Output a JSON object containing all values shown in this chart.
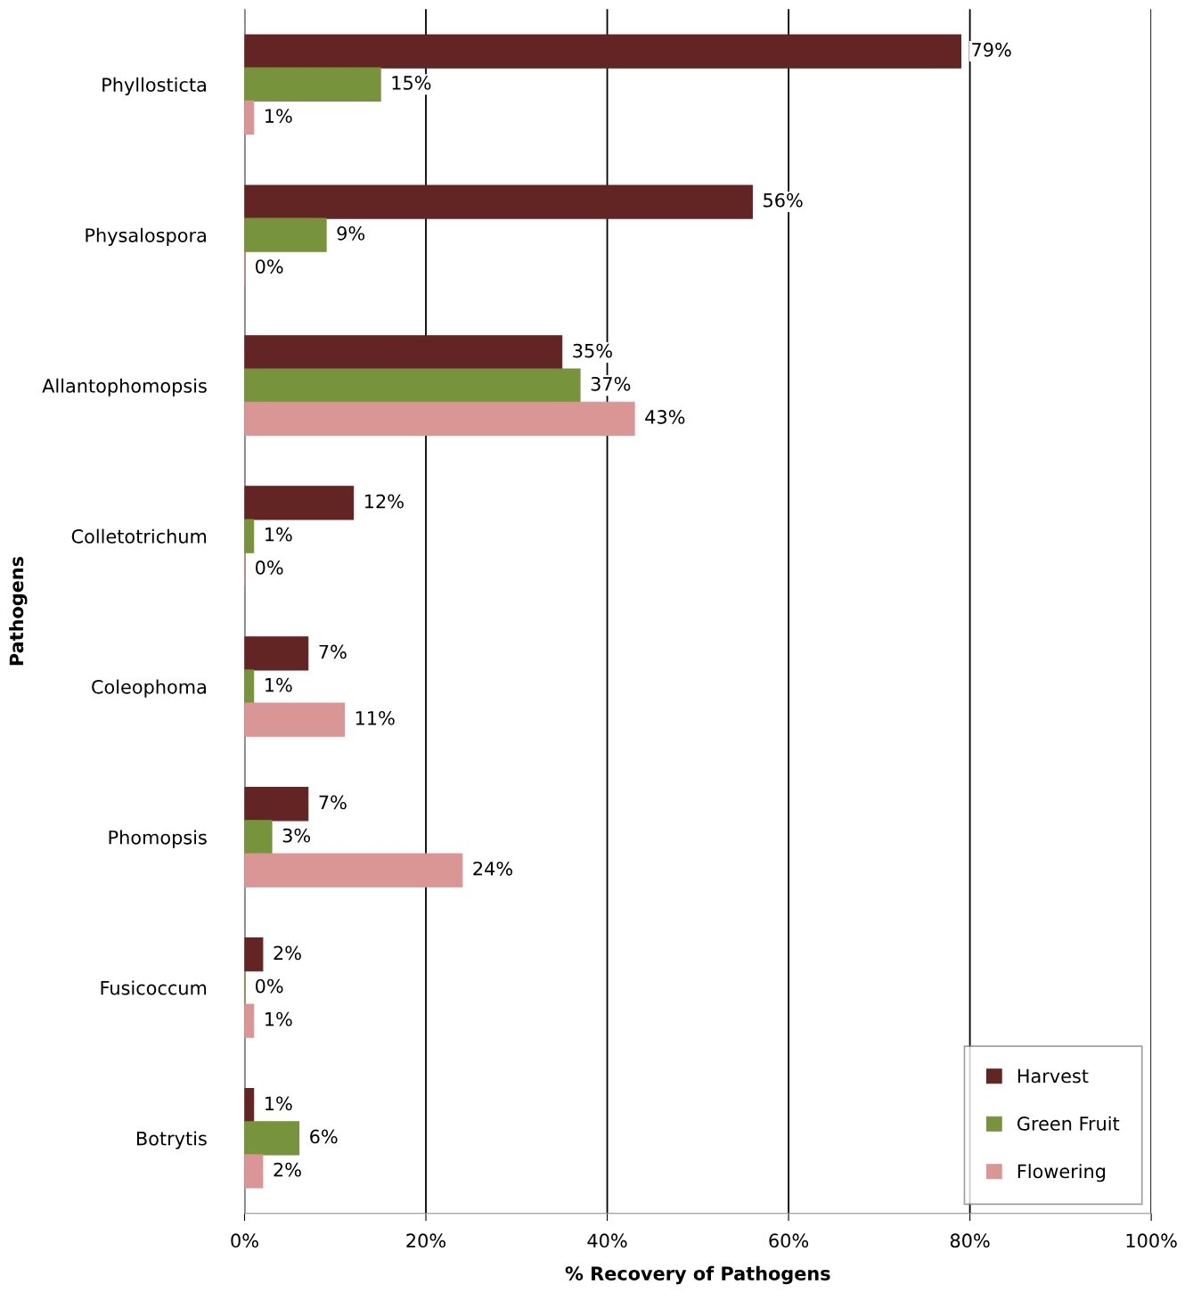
{
  "chart_data": {
    "type": "bar",
    "orientation": "horizontal",
    "xlabel": "% Recovery of Pathogens",
    "ylabel": "Pathogens",
    "categories": [
      "Phyllosticta",
      "Physalospora",
      "Allantophomopsis",
      "Colletotrichum",
      "Coleophoma",
      "Phomopsis",
      "Fusicoccum",
      "Botrytis"
    ],
    "series": [
      {
        "name": "Harvest",
        "color": "#632523",
        "values": [
          79,
          56,
          35,
          12,
          7,
          7,
          2,
          1
        ],
        "value_labels": [
          "79%",
          "56%",
          "35%",
          "12%",
          "7%",
          "7%",
          "2%",
          "1%"
        ]
      },
      {
        "name": "Green Fruit",
        "color": "#77933c",
        "values": [
          15,
          9,
          37,
          1,
          1,
          3,
          0,
          6
        ],
        "value_labels": [
          "15%",
          "9%",
          "37%",
          "1%",
          "1%",
          "3%",
          "0%",
          "6%"
        ]
      },
      {
        "name": "Flowering",
        "color": "#d99694",
        "values": [
          1,
          0,
          43,
          0,
          11,
          24,
          1,
          2
        ],
        "value_labels": [
          "1%",
          "0%",
          "43%",
          "0%",
          "11%",
          "24%",
          "1%",
          "2%"
        ]
      }
    ],
    "xlim": [
      0,
      100
    ],
    "xticks": [
      {
        "value": 0,
        "label": "0%"
      },
      {
        "value": 20,
        "label": "20%"
      },
      {
        "value": 40,
        "label": "40%"
      },
      {
        "value": 60,
        "label": "60%"
      },
      {
        "value": 80,
        "label": "80%"
      },
      {
        "value": 100,
        "label": "100%"
      }
    ],
    "grid": "x",
    "legend": "bottom right"
  }
}
